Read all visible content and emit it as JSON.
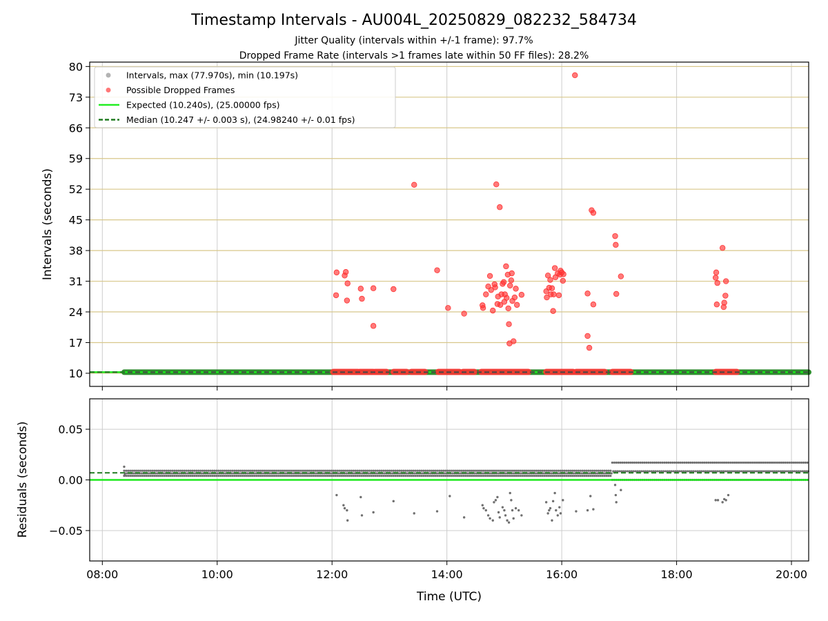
{
  "chart_data": [
    {
      "type": "scatter",
      "panel": "intervals",
      "title": "Timestamp Intervals - AU004L_20250829_082232_584734",
      "subtitles": [
        "Jitter Quality (intervals within +/-1 frame): 97.7%",
        "Dropped Frame Rate (intervals >1 frames late within 50 FF files): 28.2%"
      ],
      "xlabel": "Time (UTC)",
      "ylabel": "Intervals (seconds)",
      "xlim_hours": [
        7.78,
        20.3
      ],
      "ylim": [
        7,
        81
      ],
      "x_ticks": [
        {
          "value": 8,
          "label": "08:00"
        },
        {
          "value": 10,
          "label": "10:00"
        },
        {
          "value": 12,
          "label": "12:00"
        },
        {
          "value": 14,
          "label": "14:00"
        },
        {
          "value": 16,
          "label": "16:00"
        },
        {
          "value": 18,
          "label": "18:00"
        },
        {
          "value": 20,
          "label": "20:00"
        }
      ],
      "y_ticks": [
        {
          "value": 10,
          "label": "10"
        },
        {
          "value": 17,
          "label": "17"
        },
        {
          "value": 24,
          "label": "24"
        },
        {
          "value": 31,
          "label": "31"
        },
        {
          "value": 38,
          "label": "38"
        },
        {
          "value": 45,
          "label": "45"
        },
        {
          "value": 52,
          "label": "52"
        },
        {
          "value": 59,
          "label": "59"
        },
        {
          "value": 66,
          "label": "66"
        },
        {
          "value": 73,
          "label": "73"
        },
        {
          "value": 80,
          "label": "80"
        }
      ],
      "grid": true,
      "legend_position": "top-left",
      "legend": [
        {
          "label": "Intervals, max (77.970s), min (10.197s)",
          "kind": "dot",
          "color": "#a0a0a0"
        },
        {
          "label": "Possible Dropped Frames",
          "kind": "dot",
          "color": "#ff5555"
        },
        {
          "label": "Expected (10.240s), (25.00000 fps)",
          "kind": "line",
          "color": "#22ee22"
        },
        {
          "label": "Median (10.247 +/- 0.003 s), (24.98240 +/- 0.01 fps)",
          "kind": "dashed",
          "color": "#1e7a1e"
        }
      ],
      "intervals_band": {
        "x_start": 8.38,
        "x_end": 20.3,
        "y": 10.24
      },
      "expected_line_y": 10.24,
      "median_line_y": 10.247,
      "dropped_segments_y": 10.3,
      "dropped_segments": [
        [
          12.02,
          12.45
        ],
        [
          12.48,
          12.72
        ],
        [
          12.75,
          12.95
        ],
        [
          13.07,
          13.3
        ],
        [
          13.38,
          13.62
        ],
        [
          13.85,
          14.22
        ],
        [
          14.28,
          14.48
        ],
        [
          14.6,
          15.42
        ],
        [
          15.73,
          16.2
        ],
        [
          16.25,
          16.75
        ],
        [
          16.88,
          17.2
        ],
        [
          18.68,
          19.05
        ]
      ],
      "dropped_points": [
        {
          "x": 12.07,
          "y": 27.8
        },
        {
          "x": 12.08,
          "y": 33.0
        },
        {
          "x": 12.22,
          "y": 32.3
        },
        {
          "x": 12.24,
          "y": 33.1
        },
        {
          "x": 12.26,
          "y": 26.6
        },
        {
          "x": 12.27,
          "y": 30.5
        },
        {
          "x": 12.5,
          "y": 29.3
        },
        {
          "x": 12.52,
          "y": 27.0
        },
        {
          "x": 12.72,
          "y": 29.4
        },
        {
          "x": 12.72,
          "y": 20.8
        },
        {
          "x": 13.07,
          "y": 29.2
        },
        {
          "x": 13.43,
          "y": 53.0
        },
        {
          "x": 13.83,
          "y": 33.5
        },
        {
          "x": 14.02,
          "y": 24.9
        },
        {
          "x": 14.3,
          "y": 23.6
        },
        {
          "x": 14.62,
          "y": 25.5
        },
        {
          "x": 14.63,
          "y": 24.9
        },
        {
          "x": 14.68,
          "y": 28.0
        },
        {
          "x": 14.72,
          "y": 29.8
        },
        {
          "x": 14.75,
          "y": 32.2
        },
        {
          "x": 14.77,
          "y": 29.0
        },
        {
          "x": 14.8,
          "y": 24.3
        },
        {
          "x": 14.83,
          "y": 30.3
        },
        {
          "x": 14.84,
          "y": 29.6
        },
        {
          "x": 14.86,
          "y": 53.1
        },
        {
          "x": 14.88,
          "y": 25.8
        },
        {
          "x": 14.89,
          "y": 27.5
        },
        {
          "x": 14.92,
          "y": 47.9
        },
        {
          "x": 14.93,
          "y": 25.6
        },
        {
          "x": 14.95,
          "y": 28.0
        },
        {
          "x": 14.97,
          "y": 30.4
        },
        {
          "x": 14.99,
          "y": 30.8
        },
        {
          "x": 15.0,
          "y": 26.3
        },
        {
          "x": 15.01,
          "y": 28.0
        },
        {
          "x": 15.03,
          "y": 34.4
        },
        {
          "x": 15.04,
          "y": 27.2
        },
        {
          "x": 15.06,
          "y": 32.5
        },
        {
          "x": 15.07,
          "y": 24.8
        },
        {
          "x": 15.08,
          "y": 21.2
        },
        {
          "x": 15.09,
          "y": 16.8
        },
        {
          "x": 15.1,
          "y": 30.0
        },
        {
          "x": 15.12,
          "y": 31.2
        },
        {
          "x": 15.13,
          "y": 32.8
        },
        {
          "x": 15.14,
          "y": 26.5
        },
        {
          "x": 15.16,
          "y": 17.3
        },
        {
          "x": 15.18,
          "y": 27.3
        },
        {
          "x": 15.2,
          "y": 29.3
        },
        {
          "x": 15.22,
          "y": 25.6
        },
        {
          "x": 15.3,
          "y": 27.9
        },
        {
          "x": 15.73,
          "y": 28.7
        },
        {
          "x": 15.74,
          "y": 27.3
        },
        {
          "x": 15.76,
          "y": 32.3
        },
        {
          "x": 15.78,
          "y": 29.5
        },
        {
          "x": 15.8,
          "y": 31.3
        },
        {
          "x": 15.81,
          "y": 28.0
        },
        {
          "x": 15.83,
          "y": 29.4
        },
        {
          "x": 15.85,
          "y": 24.2
        },
        {
          "x": 15.86,
          "y": 28.0
        },
        {
          "x": 15.88,
          "y": 34.0
        },
        {
          "x": 15.89,
          "y": 31.9
        },
        {
          "x": 15.93,
          "y": 32.8
        },
        {
          "x": 15.95,
          "y": 27.8
        },
        {
          "x": 15.97,
          "y": 32.5
        },
        {
          "x": 15.98,
          "y": 33.4
        },
        {
          "x": 16.0,
          "y": 33.0
        },
        {
          "x": 16.02,
          "y": 31.1
        },
        {
          "x": 16.03,
          "y": 32.6
        },
        {
          "x": 16.23,
          "y": 78.0
        },
        {
          "x": 16.45,
          "y": 28.2
        },
        {
          "x": 16.45,
          "y": 18.5
        },
        {
          "x": 16.48,
          "y": 15.8
        },
        {
          "x": 16.52,
          "y": 47.2
        },
        {
          "x": 16.55,
          "y": 46.6
        },
        {
          "x": 16.55,
          "y": 25.7
        },
        {
          "x": 16.93,
          "y": 41.3
        },
        {
          "x": 16.94,
          "y": 39.3
        },
        {
          "x": 16.95,
          "y": 28.1
        },
        {
          "x": 17.03,
          "y": 32.1
        },
        {
          "x": 18.68,
          "y": 31.8
        },
        {
          "x": 18.69,
          "y": 33.0
        },
        {
          "x": 18.7,
          "y": 25.7
        },
        {
          "x": 18.71,
          "y": 30.6
        },
        {
          "x": 18.8,
          "y": 38.6
        },
        {
          "x": 18.82,
          "y": 25.1
        },
        {
          "x": 18.83,
          "y": 26.1
        },
        {
          "x": 18.85,
          "y": 27.7
        },
        {
          "x": 18.86,
          "y": 31.0
        }
      ],
      "colors": {
        "dropped": "#ff3333",
        "interval_band": "#2e8b2e",
        "median_dash": "#444444",
        "expected": "#1be81b",
        "median": "#1e7a1e",
        "grid_y": "#d8c78a",
        "grid_x": "#cccccc"
      }
    },
    {
      "type": "scatter",
      "panel": "residuals",
      "xlabel": "Time (UTC)",
      "ylabel": "Residuals (seconds)",
      "xlim_hours": [
        7.78,
        20.3
      ],
      "ylim": [
        -0.08,
        0.08
      ],
      "y_ticks": [
        {
          "value": 0.05,
          "label": "0.05"
        },
        {
          "value": 0.0,
          "label": "0.00"
        },
        {
          "value": -0.05,
          "label": "−0.05"
        }
      ],
      "grid": true,
      "expected_line_y": 0.0,
      "median_line_y": 0.007,
      "main_band": [
        {
          "x_start": 8.38,
          "x_end": 16.88,
          "y_low": 0.004,
          "y_high": 0.009
        },
        {
          "x_start": 16.88,
          "x_end": 20.3,
          "y_low": 0.0,
          "y_high": 0.017
        }
      ],
      "outliers": [
        {
          "x": 8.38,
          "y": 0.013
        },
        {
          "x": 8.39,
          "y": 0.005
        },
        {
          "x": 12.08,
          "y": -0.015
        },
        {
          "x": 12.2,
          "y": -0.025
        },
        {
          "x": 12.22,
          "y": -0.028
        },
        {
          "x": 12.26,
          "y": -0.03
        },
        {
          "x": 12.27,
          "y": -0.04
        },
        {
          "x": 12.5,
          "y": -0.017
        },
        {
          "x": 12.52,
          "y": -0.035
        },
        {
          "x": 12.72,
          "y": -0.032
        },
        {
          "x": 13.07,
          "y": -0.021
        },
        {
          "x": 13.43,
          "y": -0.033
        },
        {
          "x": 13.83,
          "y": -0.031
        },
        {
          "x": 14.05,
          "y": -0.016
        },
        {
          "x": 14.3,
          "y": -0.037
        },
        {
          "x": 14.62,
          "y": -0.025
        },
        {
          "x": 14.64,
          "y": -0.028
        },
        {
          "x": 14.68,
          "y": -0.03
        },
        {
          "x": 14.72,
          "y": -0.035
        },
        {
          "x": 14.75,
          "y": -0.038
        },
        {
          "x": 14.8,
          "y": -0.04
        },
        {
          "x": 14.82,
          "y": -0.022
        },
        {
          "x": 14.85,
          "y": -0.02
        },
        {
          "x": 14.88,
          "y": -0.017
        },
        {
          "x": 14.9,
          "y": -0.032
        },
        {
          "x": 14.92,
          "y": -0.037
        },
        {
          "x": 14.97,
          "y": -0.027
        },
        {
          "x": 15.0,
          "y": -0.03
        },
        {
          "x": 15.02,
          "y": -0.035
        },
        {
          "x": 15.05,
          "y": -0.04
        },
        {
          "x": 15.08,
          "y": -0.042
        },
        {
          "x": 15.1,
          "y": -0.013
        },
        {
          "x": 15.12,
          "y": -0.02
        },
        {
          "x": 15.14,
          "y": -0.03
        },
        {
          "x": 15.16,
          "y": -0.038
        },
        {
          "x": 15.2,
          "y": -0.028
        },
        {
          "x": 15.25,
          "y": -0.03
        },
        {
          "x": 15.3,
          "y": -0.035
        },
        {
          "x": 15.73,
          "y": -0.022
        },
        {
          "x": 15.76,
          "y": -0.033
        },
        {
          "x": 15.78,
          "y": -0.03
        },
        {
          "x": 15.8,
          "y": -0.028
        },
        {
          "x": 15.83,
          "y": -0.04
        },
        {
          "x": 15.85,
          "y": -0.021
        },
        {
          "x": 15.88,
          "y": -0.013
        },
        {
          "x": 15.9,
          "y": -0.03
        },
        {
          "x": 15.93,
          "y": -0.035
        },
        {
          "x": 15.96,
          "y": -0.027
        },
        {
          "x": 15.98,
          "y": -0.033
        },
        {
          "x": 16.02,
          "y": -0.02
        },
        {
          "x": 16.25,
          "y": -0.031
        },
        {
          "x": 16.45,
          "y": -0.03
        },
        {
          "x": 16.5,
          "y": -0.016
        },
        {
          "x": 16.55,
          "y": -0.029
        },
        {
          "x": 16.93,
          "y": -0.005
        },
        {
          "x": 16.94,
          "y": -0.015
        },
        {
          "x": 16.95,
          "y": -0.022
        },
        {
          "x": 17.03,
          "y": -0.01
        },
        {
          "x": 18.68,
          "y": -0.02
        },
        {
          "x": 18.72,
          "y": -0.02
        },
        {
          "x": 18.8,
          "y": -0.022
        },
        {
          "x": 18.83,
          "y": -0.019
        },
        {
          "x": 18.86,
          "y": -0.02
        },
        {
          "x": 18.9,
          "y": -0.015
        }
      ],
      "colors": {
        "points": "#707070",
        "expected": "#1be81b",
        "median": "#1e7a1e",
        "grid": "#cccccc"
      }
    }
  ]
}
